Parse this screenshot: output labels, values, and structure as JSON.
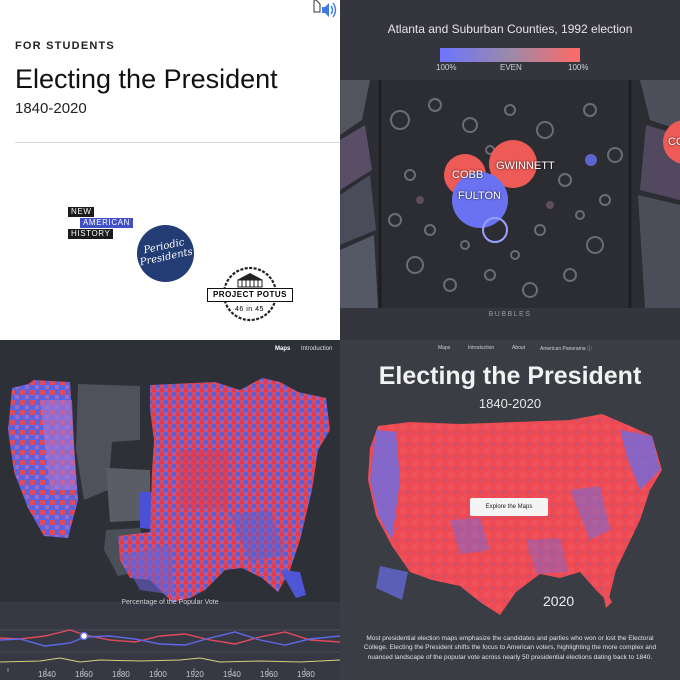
{
  "tile1": {
    "kicker": "FOR STUDENTS",
    "title": "Electing the President",
    "years": "1840-2020",
    "logos": {
      "nah": [
        "NEW",
        "AMERICAN",
        "HISTORY"
      ],
      "periodic": [
        "Periodic",
        "Presidents"
      ],
      "potus_name": "PROJECT POTUS",
      "potus_sub": "46 in 45"
    }
  },
  "tile2": {
    "title": "Atlanta and Suburban Counties, 1992 election",
    "legend": {
      "left": "100%",
      "mid": "EVEN",
      "right": "100%"
    },
    "counties": [
      "COBB",
      "GWINNETT",
      "FULTON",
      "CO"
    ],
    "view_label": "BUBBLES",
    "colors": {
      "red": "#ee5a55",
      "blue": "#6b72f2"
    }
  },
  "tile3": {
    "nav": [
      "Maps",
      "Introduction"
    ],
    "chart_title": "Percentage of the Popular Vote",
    "xticks": [
      "1840",
      "1860",
      "1880",
      "1900",
      "1920",
      "1940",
      "1960",
      "1980"
    ]
  },
  "tile4": {
    "nav": [
      "Maps",
      "Introduction",
      "About",
      "American Panorama ⓘ"
    ],
    "title": "Electing the President",
    "years": "1840-2020",
    "button": "Explore the Maps",
    "map_year": "2020",
    "paragraph": "Most presidential election maps emphasize the candidates and parties who won or lost the Electoral College. Electing the President shifts the focus to American voters, highlighting the more complex and nuanced landscape of the popular vote across nearly 50 presidential elections dating back to 1840."
  }
}
